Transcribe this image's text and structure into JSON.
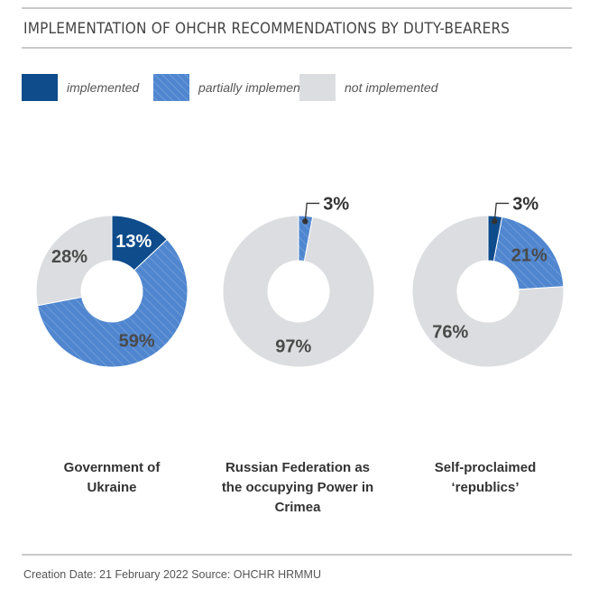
{
  "title": "IMPLEMENTATION OF OHCHR RECOMMENDATIONS BY DUTY-BEARERS",
  "footer": "Creation Date: 21 February 2022  Source: OHCHR HRMMU",
  "colors": {
    "implemented": "#0e4c8b",
    "partially_implemented": "#4f86cf",
    "not_implemented": "#dcdde0",
    "label_dark": "#4a4a4a",
    "label_light": "#ffffff"
  },
  "legend": [
    {
      "key": "implemented",
      "label": "implemented"
    },
    {
      "key": "partially_implemented",
      "label": "partially implemented"
    },
    {
      "key": "not_implemented",
      "label": "not implemented"
    }
  ],
  "chart_data": [
    {
      "type": "pie",
      "donut": true,
      "caption": [
        "Government of",
        "Ukraine"
      ],
      "slices": [
        {
          "category": "implemented",
          "value": 13,
          "label": "13%"
        },
        {
          "category": "partially_implemented",
          "value": 59,
          "label": "59%"
        },
        {
          "category": "not_implemented",
          "value": 28,
          "label": "28%"
        }
      ]
    },
    {
      "type": "pie",
      "donut": true,
      "caption": [
        "Russian Federation as",
        "the occupying Power in",
        "Crimea"
      ],
      "slices": [
        {
          "category": "implemented",
          "value": 0,
          "label": ""
        },
        {
          "category": "partially_implemented",
          "value": 3,
          "label": "3%"
        },
        {
          "category": "not_implemented",
          "value": 97,
          "label": "97%"
        }
      ]
    },
    {
      "type": "pie",
      "donut": true,
      "caption": [
        "Self-proclaimed",
        "‘republics’"
      ],
      "slices": [
        {
          "category": "implemented",
          "value": 3,
          "label": "3%"
        },
        {
          "category": "partially_implemented",
          "value": 21,
          "label": "21%"
        },
        {
          "category": "not_implemented",
          "value": 76,
          "label": "76%"
        }
      ]
    }
  ]
}
